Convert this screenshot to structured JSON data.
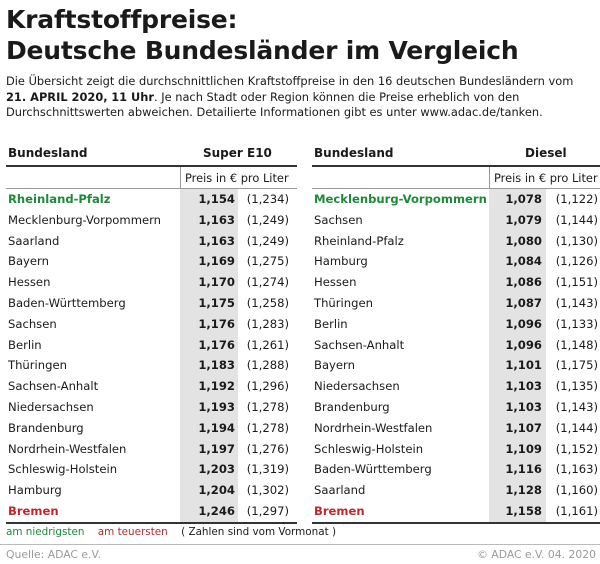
{
  "title_line1": "Kraftstoffpreise:",
  "title_line2": "Deutsche Bundesländer im Vergleich",
  "intro": {
    "part1": "Die Übersicht zeigt die durchschnittlichen Kraftstoffpreise in den 16 deutschen Bundesländern vom ",
    "date": "21. APRIL 2020,",
    "time": "11 Uhr",
    "part2": ". Je nach Stadt oder Region können die Preise erheblich von den Durchschnittswerten abweichen. Detailierte Informationen gibt es unter www.adac.de/tanken."
  },
  "chart_data": [
    {
      "type": "table",
      "region_header": "Bundesland",
      "fuel": "Super E10",
      "unit": "Preis in € pro Liter",
      "rows": [
        {
          "region": "Rheinland-Pfalz",
          "price": "1,154",
          "previous": "(1,234)",
          "flag": "low"
        },
        {
          "region": "Mecklenburg-Vorpommern",
          "price": "1,163",
          "previous": "(1,249)",
          "flag": ""
        },
        {
          "region": "Saarland",
          "price": "1,163",
          "previous": "(1,249)",
          "flag": ""
        },
        {
          "region": "Bayern",
          "price": "1,169",
          "previous": "(1,275)",
          "flag": ""
        },
        {
          "region": "Hessen",
          "price": "1,170",
          "previous": "(1,274)",
          "flag": ""
        },
        {
          "region": "Baden-Württemberg",
          "price": "1,175",
          "previous": "(1,258)",
          "flag": ""
        },
        {
          "region": "Sachsen",
          "price": "1,176",
          "previous": "(1,283)",
          "flag": ""
        },
        {
          "region": "Berlin",
          "price": "1,176",
          "previous": "(1,261)",
          "flag": ""
        },
        {
          "region": "Thüringen",
          "price": "1,183",
          "previous": "(1,288)",
          "flag": ""
        },
        {
          "region": "Sachsen-Anhalt",
          "price": "1,192",
          "previous": "(1,296)",
          "flag": ""
        },
        {
          "region": "Niedersachsen",
          "price": "1,193",
          "previous": "(1,278)",
          "flag": ""
        },
        {
          "region": "Brandenburg",
          "price": "1,194",
          "previous": "(1,278)",
          "flag": ""
        },
        {
          "region": "Nordrhein-Westfalen",
          "price": "1,197",
          "previous": "(1,276)",
          "flag": ""
        },
        {
          "region": "Schleswig-Holstein",
          "price": "1,203",
          "previous": "(1,319)",
          "flag": ""
        },
        {
          "region": "Hamburg",
          "price": "1,204",
          "previous": "(1,302)",
          "flag": ""
        },
        {
          "region": "Bremen",
          "price": "1,246",
          "previous": "(1,297)",
          "flag": "high"
        }
      ]
    },
    {
      "type": "table",
      "region_header": "Bundesland",
      "fuel": "Diesel",
      "unit": "Preis in € pro Liter",
      "rows": [
        {
          "region": "Mecklenburg-Vorpommern",
          "price": "1,078",
          "previous": "(1,122)",
          "flag": "low"
        },
        {
          "region": "Sachsen",
          "price": "1,079",
          "previous": "(1,144)",
          "flag": ""
        },
        {
          "region": "Rheinland-Pfalz",
          "price": "1,080",
          "previous": "(1,130)",
          "flag": ""
        },
        {
          "region": "Hamburg",
          "price": "1,084",
          "previous": "(1,126)",
          "flag": ""
        },
        {
          "region": "Hessen",
          "price": "1,086",
          "previous": "(1,151)",
          "flag": ""
        },
        {
          "region": "Thüringen",
          "price": "1,087",
          "previous": "(1,143)",
          "flag": ""
        },
        {
          "region": "Berlin",
          "price": "1,096",
          "previous": "(1,133)",
          "flag": ""
        },
        {
          "region": "Sachsen-Anhalt",
          "price": "1,096",
          "previous": "(1,148)",
          "flag": ""
        },
        {
          "region": "Bayern",
          "price": "1,101",
          "previous": "(1,175)",
          "flag": ""
        },
        {
          "region": "Niedersachsen",
          "price": "1,103",
          "previous": "(1,135)",
          "flag": ""
        },
        {
          "region": "Brandenburg",
          "price": "1,103",
          "previous": "(1,143)",
          "flag": ""
        },
        {
          "region": "Nordrhein-Westfalen",
          "price": "1,107",
          "previous": "(1,144)",
          "flag": ""
        },
        {
          "region": "Schleswig-Holstein",
          "price": "1,109",
          "previous": "(1,152)",
          "flag": ""
        },
        {
          "region": "Baden-Württemberg",
          "price": "1,116",
          "previous": "(1,163)",
          "flag": ""
        },
        {
          "region": "Saarland",
          "price": "1,128",
          "previous": "(1,160)",
          "flag": ""
        },
        {
          "region": "Bremen",
          "price": "1,158",
          "previous": "(1,161)",
          "flag": "high"
        }
      ]
    }
  ],
  "legend": {
    "lowest": "am niedrigsten",
    "highest": "am teuersten",
    "note": "( Zahlen sind vom Vormonat )"
  },
  "colors": {
    "lowest": "#1d8a3a",
    "highest": "#c0272d",
    "price_shade": "#e3e3e3"
  },
  "footer": {
    "source": "Quelle: ADAC e.V.",
    "copyright": "© ADAC e.V. 04. 2020"
  }
}
